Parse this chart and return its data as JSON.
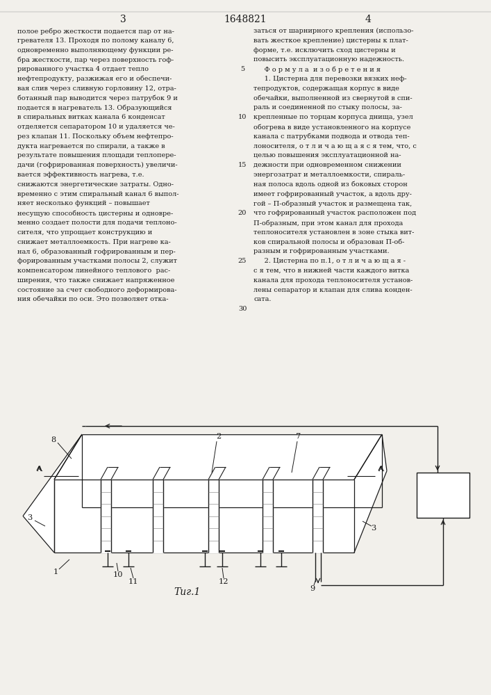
{
  "page_num_left": "3",
  "patent_num": "1648821",
  "page_num_right": "4",
  "left_col_lines": [
    "полое ребро жесткости подается пар от на-",
    "гревателя 13. Проходя по полому каналу 6,",
    "одновременно выполняющему функции ре-",
    "бра жесткости, пар через поверхность гоф-",
    "рированного участка 4 отдает тепло",
    "нефтепродукту, разжижая его и обеспечи-",
    "вая слив через сливную горловину 12, отра-",
    "ботанный пар выводится через патрубок 9 и",
    "подается в нагреватель 13. Образующийся",
    "в спиральных витках канала 6 конденсат",
    "отделяется сепаратором 10 и удаляется че-",
    "рез клапан 11. Поскольку объем нефтепро-",
    "дукта нагревается по спирали, а также в",
    "результате повышения площади теплопере-",
    "дачи (гофрированная поверхность) увеличи-",
    "вается эффективность нагрева, т.е.",
    "снижаются энергетические затраты. Одно-",
    "временно с этим спиральный канал 6 выпол-",
    "няет несколько функций – повышает",
    "несущую способность цистерны и одновре-",
    "менно создает полости для подачи теплоно-",
    "сителя, что упрощает конструкцию и",
    "снижает металлоемкость. При нагреве ка-",
    "нал 6, образованный гофрированным и пер-",
    "форированным участками полосы 2, служит",
    "компенсатором линейного теплового  рас-",
    "ширения, что также снижает напряженное",
    "состояние за счет свободного деформирова-",
    "ния обечайки по оси. Это позволяет отка-"
  ],
  "right_col_lines": [
    "заться от шарнирного крепления (использо-",
    "вать жесткое крепление) цистерны к плат-",
    "форме, т.е. исключить сход цистерны и",
    "повысить эксплуатационную надежность.",
    "     Ф о р м у л а  и з о б р е т е н и я",
    "     1. Цистерна для перевозки вязких неф-",
    "тепродуктов, содержащая корпус в виде",
    "обечайки, выполненной из свернутой в спи-",
    "раль и соединенной по стыку полосы, за-",
    "крепленные по торцам корпуса днища, узел",
    "обогрева в виде установленного на корпусе",
    "канала с патрубками подвода и отвода теп-",
    "лоносителя, о т л и ч а ю щ а я с я тем, что, с",
    "целью повышения эксплуатационной на-",
    "дежности при одновременном снижении",
    "энергозатрат и металлоемкости, спираль-",
    "ная полоса вдоль одной из боковых сторон",
    "имеет гофрированный участок, а вдоль дру-",
    "гой – П-образный участок и размещена так,",
    "что гофрированный участок расположен под",
    "П-образным, при этом канал для прохода",
    "теплоносителя установлен в зоне стыка вит-",
    "ков спиральной полосы и образован П-об-",
    "разным и гофрированным участками.",
    "     2. Цистерна по п.1, о т л и ч а ю щ а я -",
    "с я тем, что в нижней части каждого витка",
    "канала для прохода теплоносителя установ-",
    "лены сепаратор и клапан для слива конден-",
    "сата."
  ],
  "line_numbers": [
    5,
    10,
    15,
    20,
    25,
    30
  ],
  "fig_label": "Τиг.1",
  "background_color": "#f2f0eb",
  "text_color": "#1a1a1a",
  "draw_color": "#1a1a1a"
}
